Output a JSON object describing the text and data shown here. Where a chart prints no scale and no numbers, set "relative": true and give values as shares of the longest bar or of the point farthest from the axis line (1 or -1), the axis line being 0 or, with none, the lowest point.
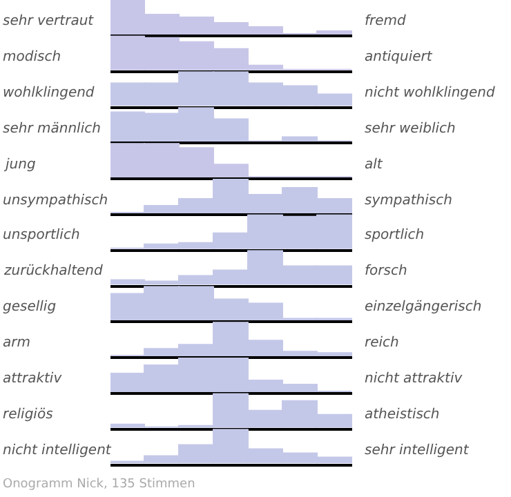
{
  "chart_data": [
    {
      "type": "bar",
      "relative": true,
      "ylabel": "sehr vertraut",
      "y2label": "fremd",
      "categories": [
        null,
        null,
        null,
        null,
        null,
        null,
        null
      ],
      "values": [
        1,
        0.56,
        0.47,
        0.32,
        0.22,
        0,
        0.1
      ],
      "color": "#c8c6e8"
    },
    {
      "type": "bar",
      "relative": true,
      "ylabel": "modisch",
      "y2label": "antiquiert",
      "categories": [
        null,
        null,
        null,
        null,
        null,
        null,
        null
      ],
      "values": [
        1,
        0.93,
        0.8,
        0.59,
        0.11,
        0,
        0
      ],
      "color": "#c8c6e8"
    },
    {
      "type": "bar",
      "relative": true,
      "ylabel": "wohlklingend",
      "y2label": "nicht wohlklingend",
      "categories": [
        null,
        null,
        null,
        null,
        null,
        null,
        null
      ],
      "values": [
        0.64,
        0.64,
        1,
        1,
        0.64,
        0.56,
        0.33
      ],
      "color": "#c4c8e8"
    },
    {
      "type": "bar",
      "relative": true,
      "ylabel": "sehr männlich",
      "y2label": "sehr weiblich",
      "categories": [
        null,
        null,
        null,
        null,
        null,
        null,
        null
      ],
      "values": [
        0.84,
        0.81,
        1,
        0.63,
        0,
        0.11,
        0
      ],
      "color": "#c4c8e8"
    },
    {
      "type": "bar",
      "relative": true,
      "ylabel": "jung",
      "y2label": "alt",
      "categories": [
        null,
        null,
        null,
        null,
        null,
        null,
        null
      ],
      "values": [
        1,
        1,
        0.85,
        0.38,
        0,
        0,
        0
      ],
      "color": "#c8c6e8"
    },
    {
      "type": "bar",
      "relative": true,
      "ylabel": "unsympathisch",
      "y2label": "sympathisch",
      "categories": [
        null,
        null,
        null,
        null,
        null,
        null,
        null
      ],
      "values": [
        0,
        0.21,
        0.42,
        1,
        0.51,
        0.73,
        0.42
      ],
      "color": "#c4c8e8"
    },
    {
      "type": "bar",
      "relative": true,
      "ylabel": "unsportlich",
      "y2label": "sportlich",
      "categories": [
        null,
        null,
        null,
        null,
        null,
        null,
        null
      ],
      "values": [
        0,
        0.13,
        0.18,
        0.44,
        1,
        0.92,
        1
      ],
      "color": "#c4c8e8"
    },
    {
      "type": "bar",
      "relative": true,
      "ylabel": "zurückhaltend",
      "y2label": "forsch",
      "categories": [
        null,
        null,
        null,
        null,
        null,
        null,
        null
      ],
      "values": [
        0.13,
        0.08,
        0.24,
        0.4,
        1,
        0.54,
        0.51
      ],
      "color": "#c4c8e8"
    },
    {
      "type": "bar",
      "relative": true,
      "ylabel": "gesellig",
      "y2label": "einzelgängerisch",
      "categories": [
        null,
        null,
        null,
        null,
        null,
        null,
        null
      ],
      "values": [
        0.75,
        1,
        1,
        0.62,
        0.48,
        0.04,
        0.04
      ],
      "color": "#c4c8e8"
    },
    {
      "type": "bar",
      "relative": true,
      "ylabel": "arm",
      "y2label": "reich",
      "categories": [
        null,
        null,
        null,
        null,
        null,
        null,
        null
      ],
      "values": [
        0,
        0.21,
        0.32,
        1,
        0.44,
        0.11,
        0.07
      ],
      "color": "#c4c8e8"
    },
    {
      "type": "bar",
      "relative": true,
      "ylabel": "attraktiv",
      "y2label": "nicht attraktiv",
      "categories": [
        null,
        null,
        null,
        null,
        null,
        null,
        null
      ],
      "values": [
        0.53,
        0.78,
        0.96,
        1,
        0.32,
        0.22,
        0
      ],
      "color": "#c4c8e8"
    },
    {
      "type": "bar",
      "relative": true,
      "ylabel": "religiös",
      "y2label": "atheistisch",
      "categories": [
        null,
        null,
        null,
        null,
        null,
        null,
        null
      ],
      "values": [
        0.08,
        0,
        0.06,
        1,
        0.5,
        0.78,
        0.35
      ],
      "color": "#c4c8e8"
    },
    {
      "type": "bar",
      "relative": true,
      "ylabel": "nicht intelligent",
      "y2label": "sehr intelligent",
      "categories": [
        null,
        null,
        null,
        null,
        null,
        null,
        null
      ],
      "values": [
        0.04,
        0.21,
        0.53,
        1,
        0.41,
        0.3,
        0.16
      ],
      "color": "#c4c8e8",
      "annotations": [
        "Onogramm Nick, 135 Stimmen"
      ]
    }
  ]
}
